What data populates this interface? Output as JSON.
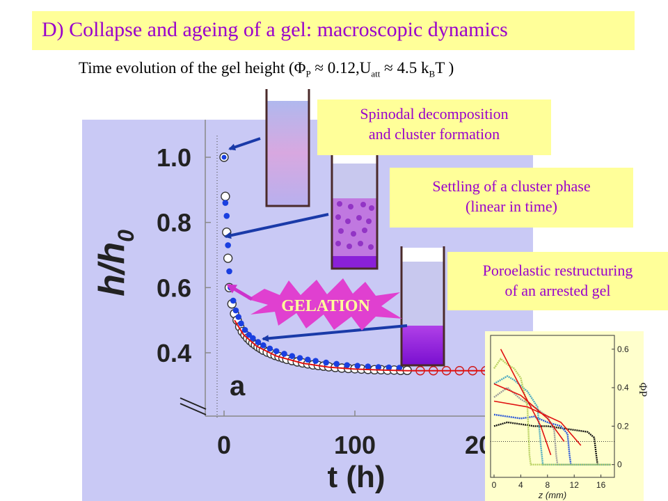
{
  "header": {
    "title": "D) Collapse and ageing of a gel: macroscopic dynamics",
    "subtitle_pre": "Time evolution of the gel height (",
    "phi": "Φ",
    "phi_sub": "P",
    "mid": " ≈ 0.12,U",
    "u_sub": "att",
    "mid2": " ≈ 4.5 k",
    "k_sub": "B",
    "end": "T )"
  },
  "callouts": {
    "spinodal": [
      "Spinodal decomposition",
      "and cluster formation"
    ],
    "settling": [
      "Settling of a cluster phase",
      "(linear in time)"
    ],
    "poroelastic": [
      "Poroelastic restructuring",
      "of an arrested gel"
    ],
    "gelation": "GELATION"
  },
  "colors": {
    "accent": "#9900cc",
    "callout_bg": "#ffff99",
    "panel_bg": "#c9c9f5",
    "blue_points": "#1a3fe0",
    "red_fit": "#e01010"
  },
  "chart_data": {
    "type": "scatter",
    "xlabel": "t (h)",
    "ylabel": "h/h0",
    "panel_label": "a",
    "xlim": [
      -5,
      220
    ],
    "ylim": [
      0.3,
      1.08
    ],
    "x_ticks": [
      "0",
      "100",
      "200"
    ],
    "y_ticks": [
      "1.0",
      "0.8",
      "0.6",
      "0.4"
    ],
    "series": [
      {
        "marker": "open-circle",
        "points": [
          [
            0,
            1.0
          ],
          [
            1,
            0.88
          ],
          [
            2,
            0.77
          ],
          [
            3,
            0.69
          ],
          [
            4,
            0.6
          ],
          [
            6,
            0.55
          ],
          [
            8,
            0.52
          ],
          [
            10,
            0.5
          ],
          [
            12,
            0.48
          ],
          [
            14,
            0.465
          ],
          [
            16,
            0.455
          ],
          [
            18,
            0.445
          ],
          [
            20,
            0.437
          ],
          [
            22,
            0.43
          ],
          [
            24,
            0.424
          ],
          [
            26,
            0.418
          ],
          [
            28,
            0.413
          ],
          [
            30,
            0.408
          ],
          [
            33,
            0.402
          ],
          [
            36,
            0.397
          ],
          [
            39,
            0.392
          ],
          [
            42,
            0.388
          ],
          [
            45,
            0.384
          ],
          [
            48,
            0.38
          ],
          [
            52,
            0.376
          ],
          [
            56,
            0.372
          ],
          [
            60,
            0.369
          ],
          [
            64,
            0.366
          ],
          [
            68,
            0.363
          ],
          [
            72,
            0.361
          ],
          [
            76,
            0.359
          ],
          [
            80,
            0.357
          ],
          [
            85,
            0.355
          ],
          [
            90,
            0.353
          ],
          [
            95,
            0.352
          ],
          [
            100,
            0.351
          ],
          [
            105,
            0.35
          ],
          [
            110,
            0.349
          ],
          [
            115,
            0.348
          ],
          [
            120,
            0.348
          ],
          [
            125,
            0.347
          ],
          [
            130,
            0.347
          ],
          [
            135,
            0.346
          ],
          [
            140,
            0.346
          ],
          [
            150,
            0.345
          ],
          [
            160,
            0.345
          ],
          [
            170,
            0.345
          ],
          [
            180,
            0.345
          ],
          [
            190,
            0.345
          ],
          [
            200,
            0.345
          ],
          [
            210,
            0.345
          ]
        ]
      },
      {
        "marker": "filled-circle",
        "points": [
          [
            1,
            0.86
          ],
          [
            2,
            0.82
          ],
          [
            3,
            0.73
          ],
          [
            4,
            0.65
          ],
          [
            5,
            0.6
          ],
          [
            7,
            0.56
          ],
          [
            9,
            0.53
          ],
          [
            11,
            0.51
          ],
          [
            13,
            0.49
          ],
          [
            16,
            0.47
          ],
          [
            19,
            0.455
          ],
          [
            22,
            0.445
          ],
          [
            26,
            0.433
          ],
          [
            30,
            0.423
          ],
          [
            35,
            0.413
          ],
          [
            40,
            0.405
          ],
          [
            46,
            0.397
          ],
          [
            52,
            0.39
          ],
          [
            58,
            0.384
          ],
          [
            64,
            0.379
          ],
          [
            70,
            0.375
          ],
          [
            78,
            0.37
          ],
          [
            86,
            0.366
          ],
          [
            94,
            0.362
          ],
          [
            102,
            0.36
          ],
          [
            110,
            0.358
          ],
          [
            118,
            0.356
          ],
          [
            126,
            0.355
          ],
          [
            134,
            0.354
          ]
        ]
      }
    ],
    "fit": [
      [
        8,
        0.5
      ],
      [
        15,
        0.455
      ],
      [
        25,
        0.42
      ],
      [
        40,
        0.39
      ],
      [
        60,
        0.368
      ],
      [
        80,
        0.356
      ],
      [
        100,
        0.35
      ],
      [
        120,
        0.347
      ],
      [
        140,
        0.345
      ],
      [
        170,
        0.345
      ],
      [
        210,
        0.345
      ]
    ]
  },
  "inset_chart": {
    "type": "line",
    "xlabel": "z (mm)",
    "ylabel": "ΦP",
    "x_ticks": [
      "0",
      "4",
      "8",
      "12",
      "16"
    ],
    "y_ticks": [
      "0.6",
      "0.4",
      "0.2",
      "0"
    ],
    "xlim": [
      0,
      18
    ],
    "ylim": [
      -0.03,
      0.65
    ],
    "reference_level": 0.12,
    "profiles": [
      {
        "color": "#111111",
        "points": [
          [
            0,
            0.2
          ],
          [
            2,
            0.22
          ],
          [
            4,
            0.21
          ],
          [
            6,
            0.2
          ],
          [
            8,
            0.2
          ],
          [
            10,
            0.19
          ],
          [
            12,
            0.18
          ],
          [
            14,
            0.17
          ],
          [
            15,
            0.14
          ],
          [
            15.3,
            0.05
          ],
          [
            15.5,
            0.0
          ],
          [
            17.5,
            0.0
          ]
        ]
      },
      {
        "color": "#2a56d8",
        "points": [
          [
            0,
            0.26
          ],
          [
            2,
            0.25
          ],
          [
            4,
            0.24
          ],
          [
            6,
            0.25
          ],
          [
            8,
            0.22
          ],
          [
            10,
            0.2
          ],
          [
            11,
            0.16
          ],
          [
            11.3,
            0.05
          ],
          [
            11.5,
            0.0
          ],
          [
            17.5,
            0.0
          ]
        ]
      },
      {
        "color": "#9a9a9a",
        "points": [
          [
            0,
            0.35
          ],
          [
            2,
            0.4
          ],
          [
            4,
            0.34
          ],
          [
            6,
            0.3
          ],
          [
            8,
            0.25
          ],
          [
            9,
            0.18
          ],
          [
            9.3,
            0.05
          ],
          [
            9.5,
            0.0
          ],
          [
            17.5,
            0.0
          ]
        ]
      },
      {
        "color": "#4aa8c0",
        "points": [
          [
            0,
            0.42
          ],
          [
            2,
            0.46
          ],
          [
            3,
            0.44
          ],
          [
            5,
            0.38
          ],
          [
            6.5,
            0.3
          ],
          [
            7,
            0.1
          ],
          [
            7.3,
            0.0
          ],
          [
            17.5,
            0.0
          ]
        ]
      },
      {
        "color": "#b8d060",
        "points": [
          [
            0,
            0.5
          ],
          [
            1,
            0.55
          ],
          [
            2,
            0.52
          ],
          [
            3,
            0.5
          ],
          [
            4,
            0.45
          ],
          [
            5,
            0.3
          ],
          [
            5.3,
            0.05
          ],
          [
            5.5,
            0.0
          ],
          [
            17.5,
            0.0
          ]
        ]
      }
    ],
    "fits": [
      [
        [
          1,
          0.6
        ],
        [
          4,
          0.4
        ],
        [
          7,
          0.2
        ],
        [
          8.5,
          0.05
        ]
      ],
      [
        [
          0,
          0.42
        ],
        [
          4,
          0.36
        ],
        [
          8,
          0.24
        ],
        [
          10.5,
          0.12
        ]
      ],
      [
        [
          0,
          0.33
        ],
        [
          5,
          0.3
        ],
        [
          10,
          0.22
        ],
        [
          13,
          0.1
        ]
      ]
    ]
  }
}
